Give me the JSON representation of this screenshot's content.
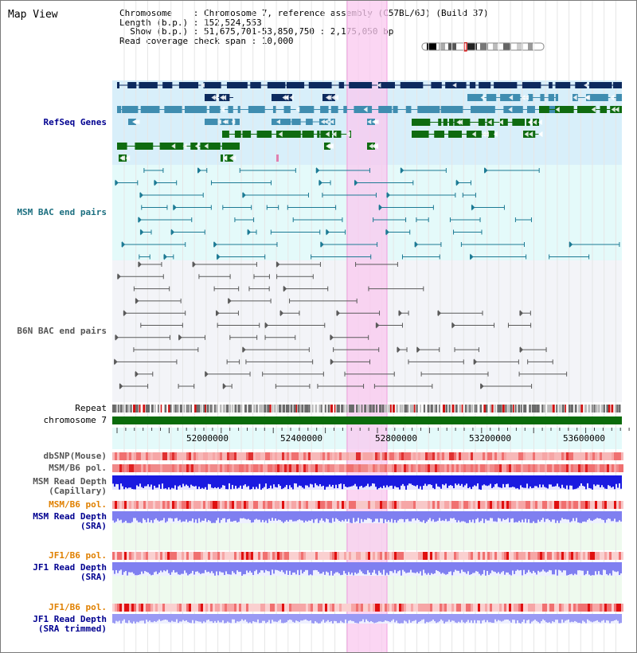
{
  "title": "Map View",
  "info": {
    "chromosome": "Chromosome    : Chromosome 7, reference assembly (C57BL/6J) (Build 37)",
    "length": "Length (b.p.) : 152,524,553",
    "show": "  Show (b.p.) : 51,675,701-53,850,750 : 2,175,050 bp",
    "coverage": "Read coverage check span : 10,000"
  },
  "track_labels": {
    "refseq": "RefSeq Genes",
    "msm_bac": "MSM BAC end pairs",
    "b6n_bac": "B6N BAC end pairs",
    "repeat": "Repeat",
    "chromosome": "chromosome 7",
    "dbsnp": "dbSNP(Mouse)",
    "msm_b6_pol_1": "MSM/B6 pol.",
    "msm_read_depth_cap_1": "MSM Read Depth",
    "msm_read_depth_cap_2": "(Capillary)",
    "msm_b6_pol_2": "MSM/B6 pol.",
    "msm_read_depth_sra_1": "MSM Read Depth",
    "msm_read_depth_sra_2": "(SRA)",
    "jf1_b6_pol_1": "JF1/B6 pol.",
    "jf1_read_depth_sra_1": "JF1 Read Depth",
    "jf1_read_depth_sra_2": "(SRA)",
    "jf1_b6_pol_2": "JF1/B6 pol.",
    "jf1_read_depth_trim_1": "JF1 Read Depth",
    "jf1_read_depth_trim_2": "(SRA trimmed)"
  },
  "axis": {
    "ticks": [
      "52000000",
      "52400000",
      "52800000",
      "53200000",
      "53600000"
    ]
  },
  "colors": {
    "refseq_bg": "#d8effa",
    "msm_bg": "#e4fafa",
    "b6n_bg": "#f3f4f8",
    "highlight": "#f9c8ef",
    "dark_navy": "#0d2a5e",
    "steel_blue": "#3f8db0",
    "green": "#0f6b10",
    "teal": "#1c7a94",
    "gray_line": "#5a5a5a",
    "blue_depth": "#1a1ae0",
    "violet_depth": "#7f7ff0",
    "label_blue": "#000090",
    "label_teal": "#1c6f80",
    "label_gray": "#555555",
    "label_orange": "#e08000",
    "chrom_green": "#0b6b0b"
  }
}
